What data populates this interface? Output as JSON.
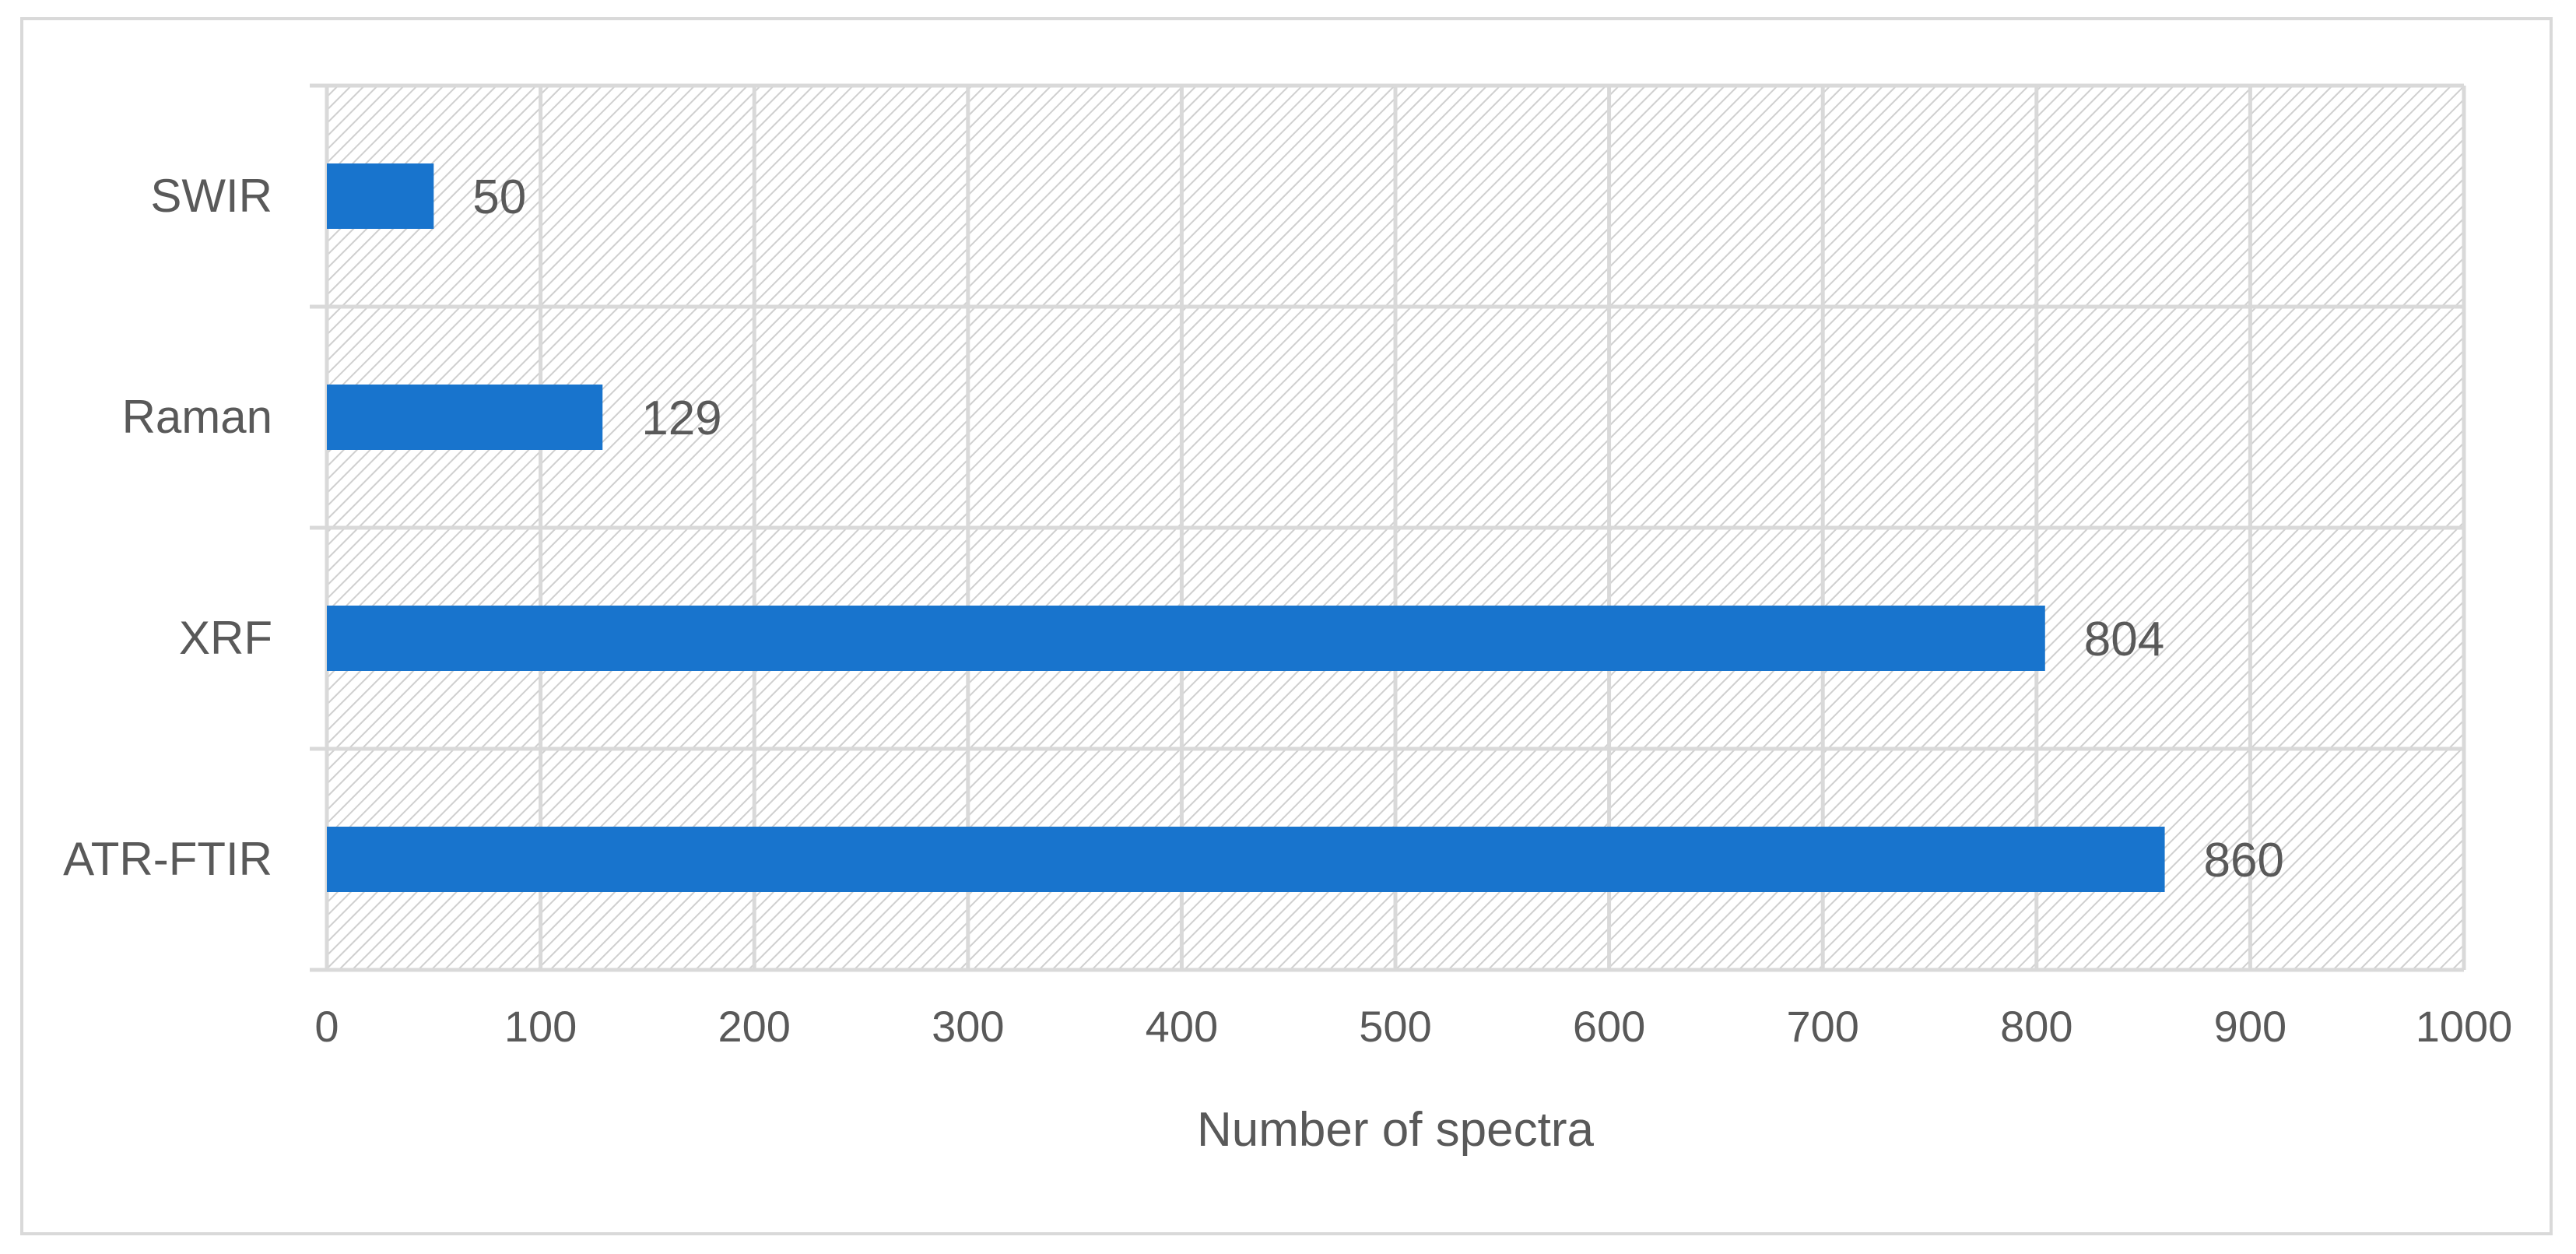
{
  "chart_data": {
    "type": "bar",
    "orientation": "horizontal",
    "categories": [
      "ATR-FTIR",
      "XRF",
      "Raman",
      "SWIR"
    ],
    "series": [
      {
        "values": [
          860,
          804,
          129,
          50
        ]
      }
    ],
    "data_labels": [
      "860",
      "804",
      "129",
      "50"
    ],
    "xlabel": "Number of spectra",
    "ylabel": "",
    "xlim": [
      0,
      1000
    ],
    "x_ticks": [
      0,
      100,
      200,
      300,
      400,
      500,
      600,
      700,
      800,
      900,
      1000
    ],
    "x_tick_labels": [
      "0",
      "100",
      "200",
      "300",
      "400",
      "500",
      "600",
      "700",
      "800",
      "900",
      "1000"
    ],
    "grid": true,
    "legend": "none",
    "colors": {
      "bar": "#1874CD",
      "grid": "#d9d9d9",
      "text": "#595959",
      "hatch": "#cccccc"
    }
  }
}
